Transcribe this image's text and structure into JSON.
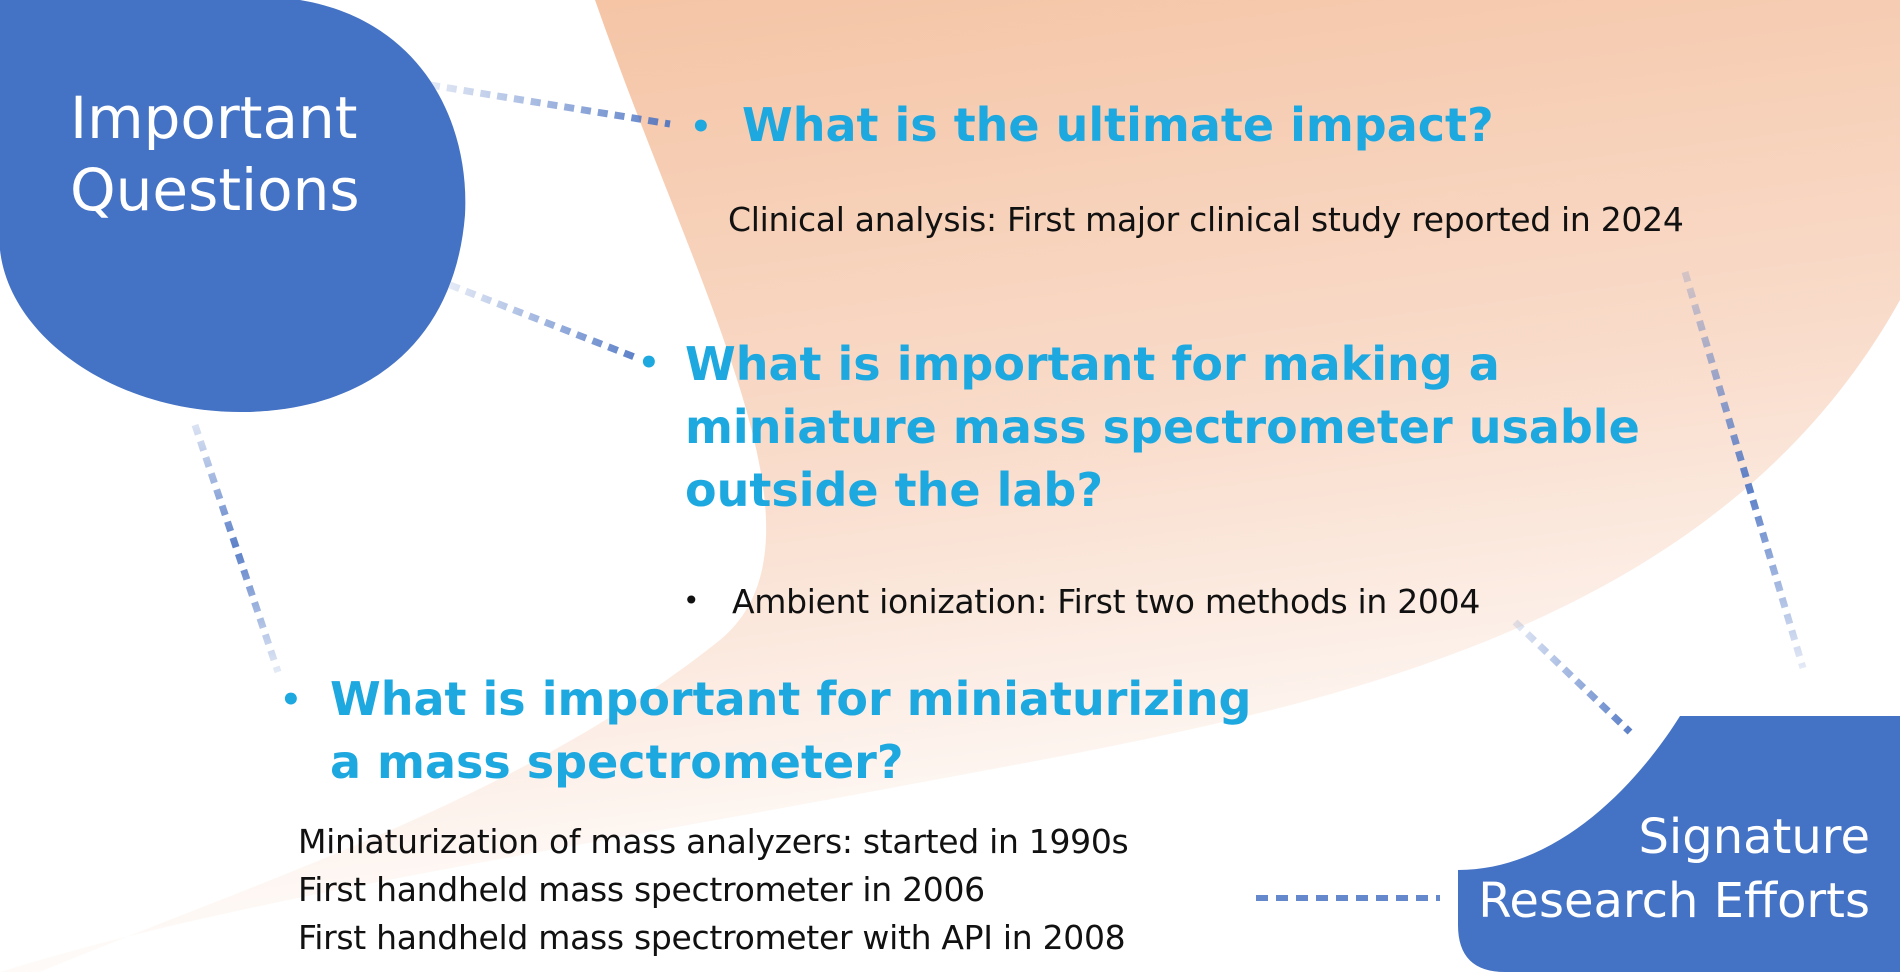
{
  "hubs": {
    "questions": {
      "line1": "Important",
      "line2": "Questions"
    },
    "efforts": {
      "line1": "Signature",
      "line2": "Research Efforts"
    }
  },
  "questions": [
    {
      "text": "What is the ultimate impact?",
      "answers": [
        "Clinical analysis: First major clinical study reported in 2024"
      ]
    },
    {
      "lines": [
        "What is important for making a",
        "miniature mass spectrometer usable",
        "outside the lab?"
      ],
      "answers": [
        "Ambient ionization: First two methods in 2004"
      ]
    },
    {
      "lines": [
        "What is important for miniaturizing",
        "a mass spectrometer?"
      ],
      "answers": [
        "Miniaturization of mass analyzers: started in 1990s",
        "First handheld mass spectrometer in 2006",
        "First handheld mass spectrometer with API in 2008"
      ]
    }
  ],
  "bullet": "•",
  "colors": {
    "hub_blue": "#4472c4",
    "question_text": "#1ea8e0",
    "answer_text": "#111111",
    "band_peach": "#f6c7a8",
    "connector": "#4a72c2"
  }
}
